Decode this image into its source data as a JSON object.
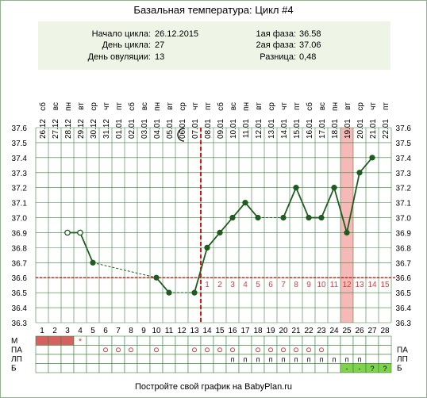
{
  "title": "Базальная температура: Цикл #4",
  "info": {
    "start_label": "Начало цикла:",
    "start_value": "26.12.2015",
    "day_label": "День цикла:",
    "day_value": "27",
    "ovulation_label": "День овуляции:",
    "ovulation_value": "13",
    "phase1_label": "1ая фаза:",
    "phase1_value": "36.58",
    "phase2_label": "2ая фаза:",
    "phase2_value": "37.06",
    "diff_label": "Разница:",
    "diff_value": "0,48"
  },
  "footer": "Постройте свой график на BabyPlan.ru",
  "colors": {
    "line": "#1f5c1f",
    "point": "#1f5c1f",
    "grid": "#3f7f3f",
    "coverline": "#cc0000",
    "ovulation": "#cc0000",
    "highlight": "#f7b8b8",
    "info_bg": "#eef5e6",
    "menstruation": "#d96060",
    "phase_num": "#d04040"
  },
  "icons": {
    "moon": "moon-icon",
    "star": "star-icon"
  },
  "chart_data": {
    "type": "line",
    "title": "Базальная температура: Цикл #4",
    "x": [
      1,
      2,
      3,
      4,
      5,
      6,
      7,
      8,
      9,
      10,
      11,
      12,
      13,
      14,
      15,
      16,
      17,
      18,
      19,
      20,
      21,
      22,
      23,
      24,
      25,
      26,
      27,
      28
    ],
    "dates": [
      "26.12",
      "27.12",
      "28.12",
      "29.12",
      "30.12",
      "31.12",
      "01.01",
      "02.01",
      "03.01",
      "04.01",
      "05.01",
      "06.01",
      "07.01",
      "08.01",
      "09.01",
      "10.01",
      "11.01",
      "12.01",
      "13.01",
      "14.01",
      "15.01",
      "16.01",
      "17.01",
      "18.01",
      "19.01",
      "20.01",
      "21.01",
      "22.01"
    ],
    "weekdays": [
      "сб",
      "вс",
      "пн",
      "вт",
      "ср",
      "чт",
      "пт",
      "сб",
      "вс",
      "пн",
      "вт",
      "ср",
      "чт",
      "пт",
      "сб",
      "вс",
      "пн",
      "вт",
      "ср",
      "чт",
      "пт",
      "сб",
      "вс",
      "пн",
      "вт",
      "ср",
      "чт",
      "пт"
    ],
    "series": [
      {
        "values": [
          null,
          null,
          36.9,
          36.9,
          36.7,
          null,
          null,
          null,
          null,
          36.6,
          36.5,
          null,
          36.5,
          36.8,
          36.9,
          37.0,
          37.1,
          37.0,
          null,
          37.0,
          37.2,
          37.0,
          37.0,
          37.2,
          36.9,
          37.3,
          37.4,
          null
        ]
      }
    ],
    "hollow_points": [
      3,
      4
    ],
    "dashed_segments": [
      [
        5,
        10
      ],
      [
        11,
        13
      ],
      [
        18,
        20
      ]
    ],
    "ylim": [
      36.3,
      37.6
    ],
    "yticks": [
      "36.3",
      "36.4",
      "36.5",
      "36.6",
      "36.7",
      "36.8",
      "36.9",
      "37.0",
      "37.1",
      "37.2",
      "37.3",
      "37.4",
      "37.5",
      "37.6"
    ],
    "coverline": 36.6,
    "ovulation_day": 13,
    "highlight_day": 25,
    "phase_numbers": [
      "1",
      "2",
      "3",
      "4",
      "5",
      "6",
      "7",
      "8",
      "9",
      "10",
      "11",
      "12",
      "13",
      "14",
      "15"
    ],
    "grid": true
  },
  "table": {
    "rows": [
      {
        "label": "М",
        "right_label": "",
        "cells": [
          "fill",
          "fill",
          "fill",
          "star",
          "",
          "",
          "",
          "",
          "",
          "",
          "",
          "",
          "",
          "",
          "",
          "",
          "",
          "",
          "",
          "",
          "",
          "",
          "",
          "",
          "",
          "",
          "",
          ""
        ]
      },
      {
        "label": "ПА",
        "right_label": "ПА",
        "cells": [
          "",
          "",
          "",
          "",
          "",
          "o",
          "o",
          "o",
          "",
          "o",
          "",
          "",
          "o",
          "o",
          "o",
          "o",
          "",
          "o",
          "o",
          "o",
          "o",
          "o",
          "o",
          "",
          "",
          "",
          "",
          ""
        ]
      },
      {
        "label": "ЛП",
        "right_label": "ЛП",
        "cells": [
          "",
          "",
          "",
          "",
          "",
          "",
          "",
          "",
          "",
          "",
          "",
          "",
          "",
          "",
          "",
          "п",
          "п",
          "п",
          "п",
          "п",
          "п",
          "п",
          "п",
          "п",
          "п",
          "п",
          "",
          ""
        ]
      },
      {
        "label": "Б",
        "right_label": "Б",
        "cells": [
          "",
          "",
          "",
          "",
          "",
          "",
          "",
          "",
          "",
          "",
          "",
          "",
          "",
          "",
          "",
          "",
          "",
          "",
          "",
          "",
          "",
          "",
          "",
          "",
          "-",
          "-",
          "?",
          "?"
        ]
      }
    ]
  }
}
